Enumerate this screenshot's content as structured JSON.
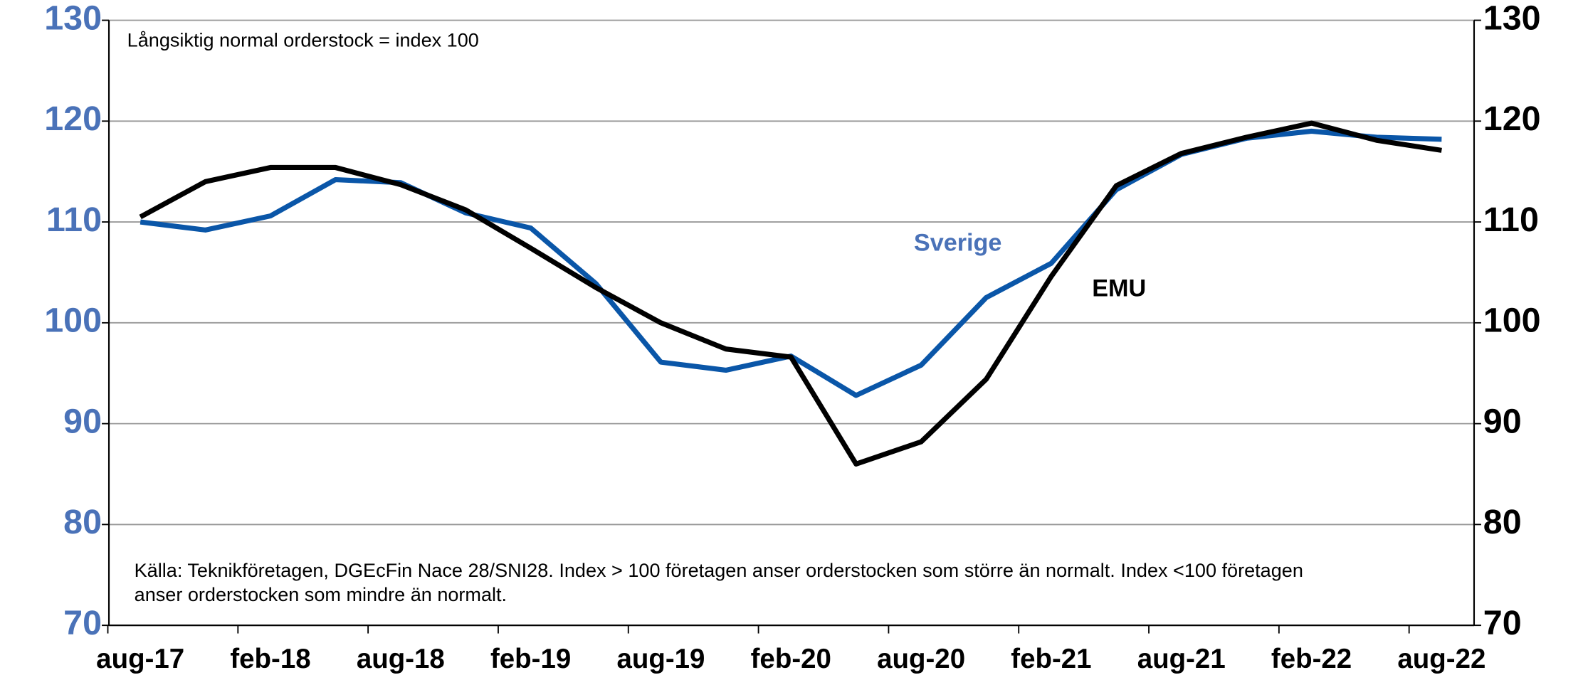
{
  "chart_data": {
    "type": "line",
    "annotations": [
      "Långsiktig normal orderstock = index 100"
    ],
    "note_lines": [
      "Källa: Teknikföretagen, DGEcFin Nace 28/SNI28. Index > 100 företagen anser orderstocken som större än normalt. Index <100 företagen",
      "anser orderstocken som mindre än normalt."
    ],
    "categories": [
      "aug-17",
      null,
      "feb-18",
      null,
      "aug-18",
      null,
      "feb-19",
      null,
      "aug-19",
      null,
      "feb-20",
      null,
      "aug-20",
      null,
      "feb-21",
      null,
      "aug-21",
      null,
      "feb-22",
      null,
      "aug-22"
    ],
    "series": [
      {
        "name": "Sverige",
        "color": "#0a56a8",
        "values": [
          110.0,
          109.2,
          110.6,
          114.2,
          113.9,
          110.9,
          109.4,
          103.9,
          96.1,
          95.3,
          96.7,
          92.8,
          95.8,
          102.5,
          105.9,
          113.2,
          116.7,
          118.3,
          119.0,
          118.4,
          118.2
        ]
      },
      {
        "name": "EMU",
        "color": "#000000",
        "values": [
          110.5,
          114.0,
          115.4,
          115.4,
          113.7,
          111.2,
          107.4,
          103.5,
          100.0,
          97.4,
          96.6,
          86.0,
          88.2,
          94.4,
          104.6,
          113.6,
          116.8,
          118.4,
          119.8,
          118.1,
          117.1
        ]
      }
    ],
    "ylim": [
      70,
      130
    ],
    "yticks": [
      70,
      80,
      90,
      100,
      110,
      120,
      130
    ],
    "ytick_color": "#4a72b8",
    "y2lim": [
      70,
      130
    ],
    "y2ticks": [
      70,
      80,
      90,
      100,
      110,
      120,
      130
    ],
    "y2tick_color": "#000000",
    "grid": true
  }
}
